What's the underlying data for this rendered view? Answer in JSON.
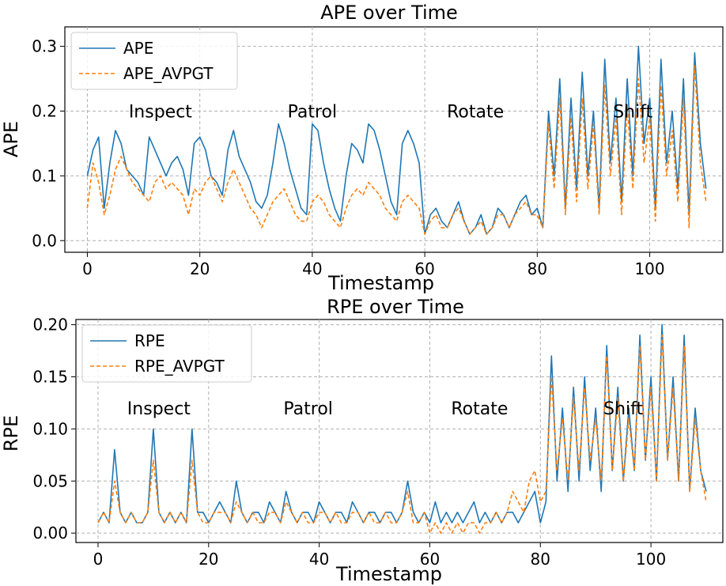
{
  "chart_data": [
    {
      "type": "line",
      "title": "APE over Time",
      "xlabel": "Timestamp",
      "ylabel": "APE",
      "xlim": [
        -4,
        113
      ],
      "ylim": [
        -0.018,
        0.33
      ],
      "xticks": [
        0,
        20,
        40,
        60,
        80,
        100
      ],
      "xtick_labels": [
        "0",
        "20",
        "40",
        "60",
        "80",
        "100"
      ],
      "yticks": [
        0.0,
        0.1,
        0.2,
        0.3
      ],
      "ytick_labels": [
        "0.0",
        "0.1",
        "0.2",
        "0.3"
      ],
      "grid": true,
      "legend_position": "top-left",
      "annotations": [
        {
          "text": "Inspect",
          "x": 13,
          "y": 0.2
        },
        {
          "text": "Patrol",
          "x": 40,
          "y": 0.2
        },
        {
          "text": "Rotate",
          "x": 69,
          "y": 0.2
        },
        {
          "text": "Shift",
          "x": 97,
          "y": 0.2
        }
      ],
      "series": [
        {
          "name": "APE",
          "color": "#1f77b4",
          "dash": "solid",
          "x": [
            0,
            1,
            2,
            3,
            4,
            5,
            6,
            7,
            8,
            9,
            10,
            11,
            12,
            13,
            14,
            15,
            16,
            17,
            18,
            19,
            20,
            21,
            22,
            23,
            24,
            25,
            26,
            27,
            28,
            29,
            30,
            31,
            32,
            33,
            34,
            35,
            36,
            37,
            38,
            39,
            40,
            41,
            42,
            43,
            44,
            45,
            46,
            47,
            48,
            49,
            50,
            51,
            52,
            53,
            54,
            55,
            56,
            57,
            58,
            59,
            60,
            61,
            62,
            63,
            64,
            65,
            66,
            67,
            68,
            69,
            70,
            71,
            72,
            73,
            74,
            75,
            76,
            77,
            78,
            79,
            80,
            81,
            82,
            83,
            84,
            85,
            86,
            87,
            88,
            89,
            90,
            91,
            92,
            93,
            94,
            95,
            96,
            97,
            98,
            99,
            100,
            101,
            102,
            103,
            104,
            105,
            106,
            107,
            108,
            109,
            110
          ],
          "y": [
            0.1,
            0.14,
            0.16,
            0.05,
            0.12,
            0.17,
            0.15,
            0.11,
            0.1,
            0.09,
            0.07,
            0.16,
            0.14,
            0.12,
            0.1,
            0.12,
            0.13,
            0.11,
            0.07,
            0.15,
            0.16,
            0.14,
            0.1,
            0.09,
            0.07,
            0.14,
            0.17,
            0.13,
            0.11,
            0.09,
            0.06,
            0.05,
            0.07,
            0.12,
            0.18,
            0.15,
            0.11,
            0.08,
            0.05,
            0.04,
            0.18,
            0.17,
            0.12,
            0.08,
            0.05,
            0.03,
            0.1,
            0.15,
            0.14,
            0.12,
            0.18,
            0.17,
            0.14,
            0.1,
            0.06,
            0.04,
            0.15,
            0.17,
            0.15,
            0.12,
            0.01,
            0.04,
            0.05,
            0.03,
            0.02,
            0.04,
            0.06,
            0.03,
            0.01,
            0.02,
            0.04,
            0.01,
            0.02,
            0.05,
            0.04,
            0.02,
            0.04,
            0.06,
            0.07,
            0.04,
            0.05,
            0.02,
            0.2,
            0.1,
            0.25,
            0.05,
            0.22,
            0.08,
            0.26,
            0.1,
            0.2,
            0.05,
            0.28,
            0.12,
            0.22,
            0.06,
            0.25,
            0.1,
            0.3,
            0.15,
            0.22,
            0.05,
            0.28,
            0.12,
            0.2,
            0.08,
            0.25,
            0.04,
            0.29,
            0.15,
            0.08
          ]
        },
        {
          "name": "APE_AVPGT",
          "color": "#ff7f0e",
          "dash": "dashed",
          "x": [
            0,
            1,
            2,
            3,
            4,
            5,
            6,
            7,
            8,
            9,
            10,
            11,
            12,
            13,
            14,
            15,
            16,
            17,
            18,
            19,
            20,
            21,
            22,
            23,
            24,
            25,
            26,
            27,
            28,
            29,
            30,
            31,
            32,
            33,
            34,
            35,
            36,
            37,
            38,
            39,
            40,
            41,
            42,
            43,
            44,
            45,
            46,
            47,
            48,
            49,
            50,
            51,
            52,
            53,
            54,
            55,
            56,
            57,
            58,
            59,
            60,
            61,
            62,
            63,
            64,
            65,
            66,
            67,
            68,
            69,
            70,
            71,
            72,
            73,
            74,
            75,
            76,
            77,
            78,
            79,
            80,
            81,
            82,
            83,
            84,
            85,
            86,
            87,
            88,
            89,
            90,
            91,
            92,
            93,
            94,
            95,
            96,
            97,
            98,
            99,
            100,
            101,
            102,
            103,
            104,
            105,
            106,
            107,
            108,
            109,
            110
          ],
          "y": [
            0.05,
            0.12,
            0.09,
            0.04,
            0.07,
            0.11,
            0.13,
            0.11,
            0.09,
            0.08,
            0.07,
            0.06,
            0.09,
            0.1,
            0.08,
            0.09,
            0.08,
            0.07,
            0.04,
            0.08,
            0.07,
            0.09,
            0.1,
            0.08,
            0.06,
            0.09,
            0.11,
            0.09,
            0.07,
            0.05,
            0.04,
            0.02,
            0.04,
            0.06,
            0.07,
            0.08,
            0.06,
            0.04,
            0.03,
            0.03,
            0.06,
            0.07,
            0.06,
            0.04,
            0.03,
            0.02,
            0.05,
            0.07,
            0.08,
            0.07,
            0.09,
            0.08,
            0.07,
            0.05,
            0.04,
            0.03,
            0.06,
            0.07,
            0.06,
            0.05,
            0.01,
            0.03,
            0.04,
            0.02,
            0.02,
            0.04,
            0.05,
            0.03,
            0.01,
            0.02,
            0.03,
            0.01,
            0.02,
            0.04,
            0.04,
            0.02,
            0.04,
            0.05,
            0.06,
            0.04,
            0.04,
            0.02,
            0.18,
            0.08,
            0.22,
            0.04,
            0.19,
            0.06,
            0.22,
            0.08,
            0.18,
            0.04,
            0.24,
            0.1,
            0.19,
            0.04,
            0.21,
            0.08,
            0.25,
            0.12,
            0.19,
            0.03,
            0.24,
            0.1,
            0.17,
            0.06,
            0.22,
            0.02,
            0.27,
            0.12,
            0.06
          ]
        }
      ]
    },
    {
      "type": "line",
      "title": "RPE over Time",
      "xlabel": "Timestamp",
      "ylabel": "RPE",
      "xlim": [
        -4,
        113
      ],
      "ylim": [
        -0.009,
        0.205
      ],
      "xticks": [
        0,
        20,
        40,
        60,
        80,
        100
      ],
      "xtick_labels": [
        "0",
        "20",
        "40",
        "60",
        "80",
        "100"
      ],
      "yticks": [
        0.0,
        0.05,
        0.1,
        0.15,
        0.2
      ],
      "ytick_labels": [
        "0.00",
        "0.05",
        "0.10",
        "0.15",
        "0.20"
      ],
      "grid": true,
      "legend_position": "top-left",
      "annotations": [
        {
          "text": "Inspect",
          "x": 11,
          "y": 0.12
        },
        {
          "text": "Patrol",
          "x": 38,
          "y": 0.12
        },
        {
          "text": "Rotate",
          "x": 69,
          "y": 0.12
        },
        {
          "text": "Shift",
          "x": 95,
          "y": 0.12
        }
      ],
      "series": [
        {
          "name": "RPE",
          "color": "#1f77b4",
          "dash": "solid",
          "x": [
            0,
            1,
            2,
            3,
            4,
            5,
            6,
            7,
            8,
            9,
            10,
            11,
            12,
            13,
            14,
            15,
            16,
            17,
            18,
            19,
            20,
            21,
            22,
            23,
            24,
            25,
            26,
            27,
            28,
            29,
            30,
            31,
            32,
            33,
            34,
            35,
            36,
            37,
            38,
            39,
            40,
            41,
            42,
            43,
            44,
            45,
            46,
            47,
            48,
            49,
            50,
            51,
            52,
            53,
            54,
            55,
            56,
            57,
            58,
            59,
            60,
            61,
            62,
            63,
            64,
            65,
            66,
            67,
            68,
            69,
            70,
            71,
            72,
            73,
            74,
            75,
            76,
            77,
            78,
            79,
            80,
            81,
            82,
            83,
            84,
            85,
            86,
            87,
            88,
            89,
            90,
            91,
            92,
            93,
            94,
            95,
            96,
            97,
            98,
            99,
            100,
            101,
            102,
            103,
            104,
            105,
            106,
            107,
            108,
            109,
            110
          ],
          "y": [
            0.01,
            0.02,
            0.01,
            0.08,
            0.02,
            0.01,
            0.02,
            0.01,
            0.01,
            0.02,
            0.1,
            0.02,
            0.01,
            0.02,
            0.01,
            0.02,
            0.01,
            0.1,
            0.02,
            0.02,
            0.01,
            0.02,
            0.03,
            0.02,
            0.01,
            0.05,
            0.02,
            0.01,
            0.02,
            0.02,
            0.01,
            0.03,
            0.02,
            0.01,
            0.04,
            0.02,
            0.01,
            0.02,
            0.02,
            0.01,
            0.03,
            0.02,
            0.01,
            0.02,
            0.02,
            0.01,
            0.03,
            0.02,
            0.01,
            0.02,
            0.02,
            0.01,
            0.02,
            0.02,
            0.01,
            0.02,
            0.05,
            0.02,
            0.01,
            0.02,
            0.01,
            0.03,
            0.01,
            0.02,
            0.01,
            0.02,
            0.01,
            0.02,
            0.03,
            0.01,
            0.02,
            0.01,
            0.02,
            0.01,
            0.02,
            0.02,
            0.01,
            0.02,
            0.03,
            0.04,
            0.01,
            0.03,
            0.17,
            0.05,
            0.12,
            0.04,
            0.14,
            0.05,
            0.15,
            0.06,
            0.12,
            0.04,
            0.18,
            0.06,
            0.14,
            0.05,
            0.12,
            0.06,
            0.19,
            0.07,
            0.15,
            0.05,
            0.2,
            0.07,
            0.15,
            0.05,
            0.19,
            0.04,
            0.12,
            0.06,
            0.04
          ]
        },
        {
          "name": "RPE_AVPGT",
          "color": "#ff7f0e",
          "dash": "dashed",
          "x": [
            0,
            1,
            2,
            3,
            4,
            5,
            6,
            7,
            8,
            9,
            10,
            11,
            12,
            13,
            14,
            15,
            16,
            17,
            18,
            19,
            20,
            21,
            22,
            23,
            24,
            25,
            26,
            27,
            28,
            29,
            30,
            31,
            32,
            33,
            34,
            35,
            36,
            37,
            38,
            39,
            40,
            41,
            42,
            43,
            44,
            45,
            46,
            47,
            48,
            49,
            50,
            51,
            52,
            53,
            54,
            55,
            56,
            57,
            58,
            59,
            60,
            61,
            62,
            63,
            64,
            65,
            66,
            67,
            68,
            69,
            70,
            71,
            72,
            73,
            74,
            75,
            76,
            77,
            78,
            79,
            80,
            81,
            82,
            83,
            84,
            85,
            86,
            87,
            88,
            89,
            90,
            91,
            92,
            93,
            94,
            95,
            96,
            97,
            98,
            99,
            100,
            101,
            102,
            103,
            104,
            105,
            106,
            107,
            108,
            109,
            110
          ],
          "y": [
            0.01,
            0.02,
            0.01,
            0.05,
            0.02,
            0.01,
            0.02,
            0.01,
            0.01,
            0.02,
            0.07,
            0.02,
            0.01,
            0.02,
            0.01,
            0.02,
            0.01,
            0.07,
            0.02,
            0.01,
            0.01,
            0.02,
            0.02,
            0.02,
            0.01,
            0.03,
            0.02,
            0.01,
            0.02,
            0.01,
            0.01,
            0.02,
            0.02,
            0.01,
            0.03,
            0.02,
            0.01,
            0.02,
            0.01,
            0.01,
            0.02,
            0.02,
            0.01,
            0.02,
            0.01,
            0.01,
            0.02,
            0.02,
            0.01,
            0.02,
            0.01,
            0.01,
            0.02,
            0.01,
            0.01,
            0.02,
            0.04,
            0.01,
            0.01,
            0.02,
            0.0,
            0.01,
            0.0,
            0.01,
            0.0,
            0.01,
            0.0,
            0.01,
            0.01,
            0.0,
            0.01,
            0.01,
            0.02,
            0.01,
            0.02,
            0.04,
            0.03,
            0.02,
            0.05,
            0.06,
            0.03,
            0.04,
            0.15,
            0.06,
            0.11,
            0.05,
            0.13,
            0.06,
            0.14,
            0.07,
            0.11,
            0.05,
            0.17,
            0.06,
            0.13,
            0.05,
            0.11,
            0.06,
            0.18,
            0.07,
            0.14,
            0.05,
            0.19,
            0.07,
            0.14,
            0.05,
            0.18,
            0.04,
            0.11,
            0.06,
            0.03
          ]
        }
      ]
    }
  ]
}
